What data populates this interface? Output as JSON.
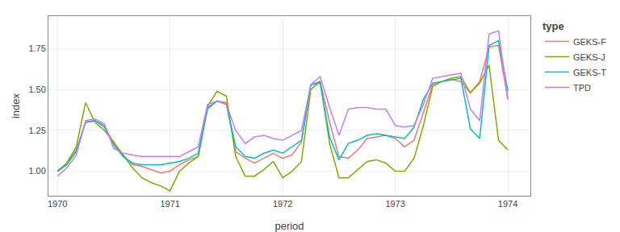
{
  "chart_data": {
    "type": "line",
    "xlabel": "period",
    "ylabel": "index",
    "legend_title": "type",
    "legend": "right",
    "grid": true,
    "xlim": [
      1969.92,
      1974.2
    ],
    "ylim": [
      0.85,
      1.95
    ],
    "xticks": [
      1970,
      1971,
      1972,
      1973,
      1974
    ],
    "yticks": [
      {
        "value": 1.0,
        "label": "1.00"
      },
      {
        "value": 1.25,
        "label": "1.25"
      },
      {
        "value": 1.5,
        "label": "1.50"
      },
      {
        "value": 1.75,
        "label": "1.75"
      }
    ],
    "x": [
      1970.0,
      1970.083,
      1970.167,
      1970.25,
      1970.333,
      1970.417,
      1970.5,
      1970.583,
      1970.667,
      1970.75,
      1970.833,
      1970.917,
      1971.0,
      1971.083,
      1971.167,
      1971.25,
      1971.333,
      1971.417,
      1971.5,
      1971.583,
      1971.667,
      1971.75,
      1971.833,
      1971.917,
      1972.0,
      1972.083,
      1972.167,
      1972.25,
      1972.333,
      1972.417,
      1972.5,
      1972.583,
      1972.667,
      1972.75,
      1972.833,
      1972.917,
      1973.0,
      1973.083,
      1973.167,
      1973.25,
      1973.333,
      1973.417,
      1973.5,
      1973.583,
      1973.667,
      1973.75,
      1973.833,
      1973.917,
      1974.0
    ],
    "series": [
      {
        "name": "GEKS-F",
        "color": "#F8766D",
        "values": [
          1.0,
          1.05,
          1.13,
          1.3,
          1.31,
          1.28,
          1.17,
          1.1,
          1.04,
          1.03,
          1.01,
          0.99,
          1.0,
          1.04,
          1.07,
          1.09,
          1.38,
          1.43,
          1.42,
          1.12,
          1.08,
          1.05,
          1.08,
          1.11,
          1.08,
          1.1,
          1.18,
          1.53,
          1.55,
          1.3,
          1.09,
          1.08,
          1.13,
          1.2,
          1.21,
          1.22,
          1.2,
          1.15,
          1.19,
          1.36,
          1.53,
          1.55,
          1.56,
          1.55,
          1.48,
          1.55,
          1.76,
          1.77,
          1.44
        ]
      },
      {
        "name": "GEKS-J",
        "color": "#7CAE00",
        "values": [
          1.0,
          1.05,
          1.15,
          1.42,
          1.3,
          1.25,
          1.18,
          1.1,
          1.02,
          0.96,
          0.93,
          0.91,
          0.88,
          1.0,
          1.05,
          1.09,
          1.4,
          1.49,
          1.46,
          1.09,
          0.97,
          0.97,
          1.01,
          1.06,
          0.96,
          1.0,
          1.06,
          1.5,
          1.55,
          1.17,
          0.96,
          0.96,
          1.01,
          1.06,
          1.07,
          1.05,
          1.0,
          1.0,
          1.08,
          1.28,
          1.52,
          1.55,
          1.57,
          1.58,
          1.48,
          1.54,
          1.65,
          1.19,
          1.13
        ]
      },
      {
        "name": "GEKS-T",
        "color": "#00BFC4",
        "values": [
          1.0,
          1.04,
          1.12,
          1.3,
          1.31,
          1.27,
          1.16,
          1.09,
          1.05,
          1.04,
          1.04,
          1.04,
          1.05,
          1.06,
          1.08,
          1.11,
          1.39,
          1.43,
          1.41,
          1.15,
          1.09,
          1.08,
          1.11,
          1.13,
          1.11,
          1.15,
          1.19,
          1.53,
          1.54,
          1.21,
          1.07,
          1.17,
          1.19,
          1.22,
          1.23,
          1.22,
          1.21,
          1.2,
          1.27,
          1.44,
          1.54,
          1.55,
          1.56,
          1.57,
          1.26,
          1.2,
          1.77,
          1.8,
          1.49
        ]
      },
      {
        "name": "TPD",
        "color": "#C77CFF",
        "values": [
          0.97,
          1.02,
          1.1,
          1.31,
          1.32,
          1.29,
          1.14,
          1.11,
          1.1,
          1.09,
          1.09,
          1.09,
          1.09,
          1.09,
          1.12,
          1.15,
          1.41,
          1.43,
          1.41,
          1.25,
          1.17,
          1.21,
          1.22,
          1.2,
          1.19,
          1.22,
          1.25,
          1.53,
          1.58,
          1.39,
          1.22,
          1.38,
          1.39,
          1.39,
          1.38,
          1.38,
          1.28,
          1.27,
          1.28,
          1.41,
          1.57,
          1.58,
          1.59,
          1.6,
          1.38,
          1.31,
          1.84,
          1.86,
          1.44
        ]
      }
    ]
  }
}
